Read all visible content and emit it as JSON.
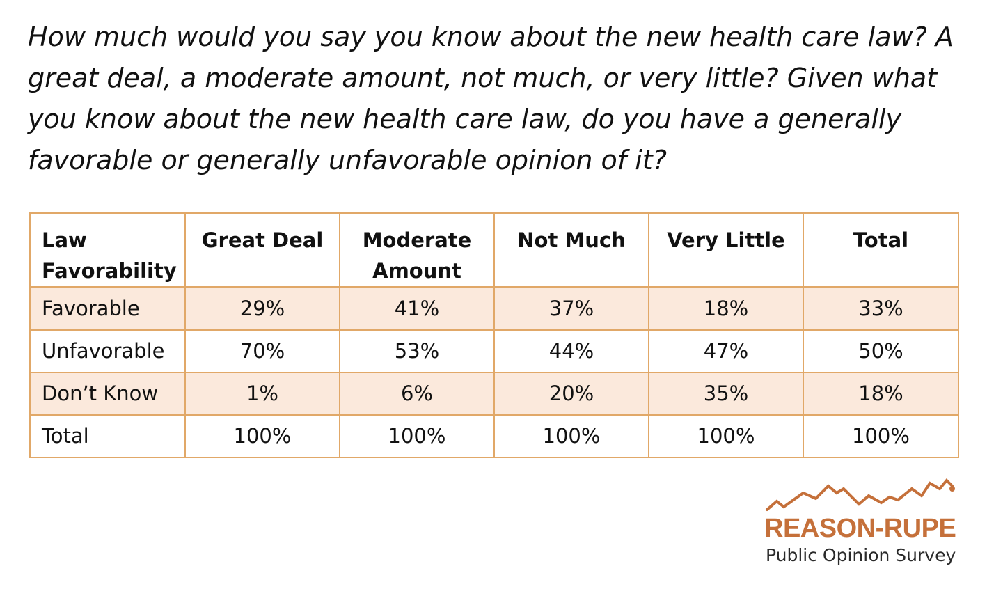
{
  "question": "How much would you say you know about the new health care law? A great deal, a moderate amount, not much, or very little? Given what you know about the new health care law, do you have a generally favorable or generally unfavorable opinion of it?",
  "chart_data": {
    "type": "table",
    "row_header_label": "Law Favorability",
    "columns": [
      "Great Deal",
      "Moderate Amount",
      "Not Much",
      "Very Little",
      "Total"
    ],
    "rows": [
      {
        "label": "Favorable",
        "values": [
          "29%",
          "41%",
          "37%",
          "18%",
          "33%"
        ]
      },
      {
        "label": "Unfavorable",
        "values": [
          "70%",
          "53%",
          "44%",
          "47%",
          "50%"
        ]
      },
      {
        "label": "Don’t Know",
        "values": [
          "1%",
          "6%",
          "20%",
          "35%",
          "18%"
        ]
      },
      {
        "label": "Total",
        "values": [
          "100%",
          "100%",
          "100%",
          "100%",
          "100%"
        ]
      }
    ],
    "colors": {
      "border": "#e1a868",
      "shaded_row": "#fbe9dc"
    }
  },
  "logo": {
    "brand": "REASON-RUPE",
    "subtitle": "Public Opinion Survey",
    "color": "#c5703a"
  }
}
